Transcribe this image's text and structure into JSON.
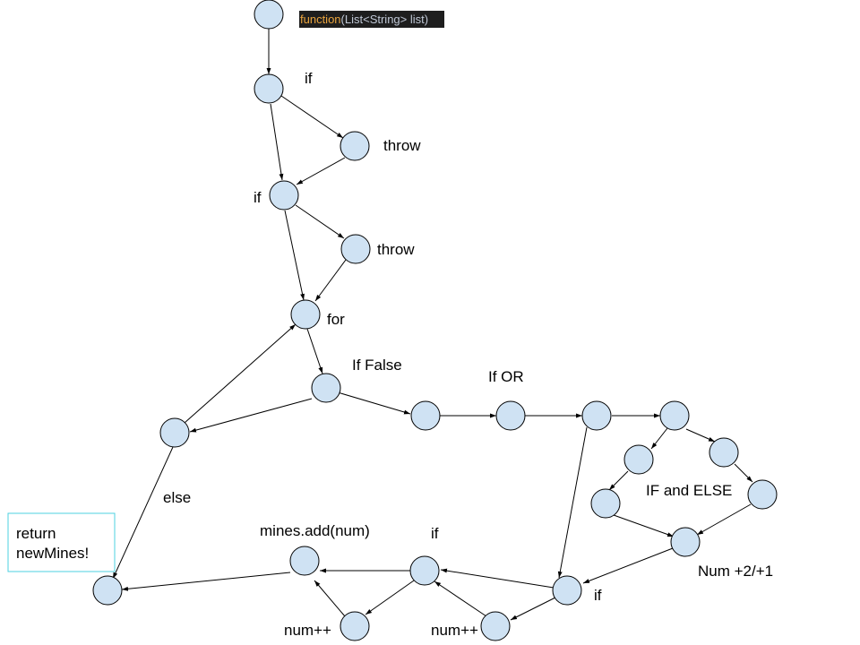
{
  "signature": {
    "keyword": "function",
    "rest": "(List<String> list)"
  },
  "return_box": {
    "line1": "return",
    "line2": "newMines!"
  },
  "labels": {
    "if1": "if",
    "throw1": "throw",
    "if2": "if",
    "throw2": "throw",
    "for": "for",
    "if_false": "If False",
    "if_or": "If OR",
    "else": "else",
    "if_and_else": "IF and ELSE",
    "num_step": "Num +2/+1",
    "if_bottom_right": "if",
    "if_bottom_mid": "if",
    "mines_add": "mines.add(num)",
    "num_inc_left": "num++",
    "num_inc_right": "num++"
  }
}
